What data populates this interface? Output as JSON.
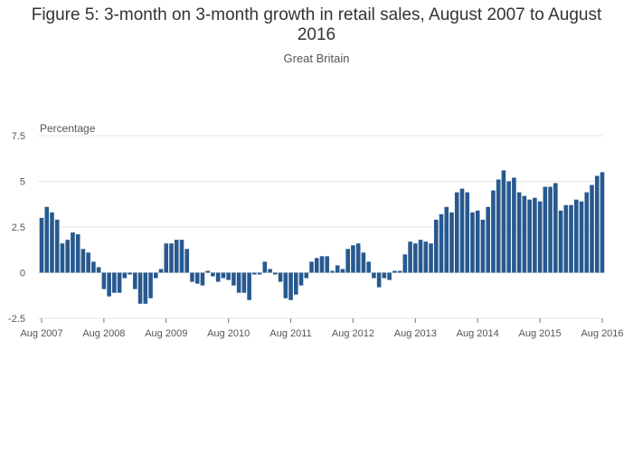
{
  "chart_data": {
    "type": "bar",
    "title": "Figure 5: 3-month on 3-month growth in retail sales, August 2007 to August 2016",
    "subtitle": "Great Britain",
    "xlabel": "",
    "ylabel": "Percentage",
    "ylim": [
      -2.5,
      7.5
    ],
    "yticks": [
      "-2.5",
      "0",
      "2.5",
      "5",
      "7.5"
    ],
    "ytick_values": [
      -2.5,
      0,
      2.5,
      5,
      7.5
    ],
    "xticks": [
      "Aug 2007",
      "Aug 2008",
      "Aug 2009",
      "Aug 2010",
      "Aug 2011",
      "Aug 2012",
      "Aug 2013",
      "Aug 2014",
      "Aug 2015",
      "Aug 2016"
    ],
    "bar_color": "#27598f",
    "grid_color": "#e6e6e6",
    "categories_start": "Aug 2007",
    "categories_end": "Aug 2016",
    "values": [
      3.0,
      3.6,
      3.3,
      2.9,
      1.6,
      1.8,
      2.2,
      2.1,
      1.3,
      1.1,
      0.6,
      0.3,
      -0.9,
      -1.3,
      -1.1,
      -1.1,
      -0.3,
      -0.1,
      -0.9,
      -1.7,
      -1.7,
      -1.4,
      -0.3,
      0.2,
      1.6,
      1.6,
      1.8,
      1.8,
      1.3,
      -0.5,
      -0.6,
      -0.7,
      0.1,
      -0.2,
      -0.5,
      -0.3,
      -0.4,
      -0.7,
      -1.1,
      -1.1,
      -1.5,
      -0.1,
      -0.1,
      0.6,
      0.2,
      -0.1,
      -0.5,
      -1.4,
      -1.5,
      -1.2,
      -0.7,
      -0.3,
      0.6,
      0.8,
      0.9,
      0.9,
      0.1,
      0.4,
      0.2,
      1.3,
      1.5,
      1.6,
      1.1,
      0.6,
      -0.3,
      -0.8,
      -0.3,
      -0.4,
      0.1,
      0.1,
      1.0,
      1.7,
      1.6,
      1.8,
      1.7,
      1.6,
      2.9,
      3.2,
      3.6,
      3.3,
      4.4,
      4.6,
      4.4,
      3.3,
      3.4,
      2.9,
      3.6,
      4.5,
      5.1,
      5.6,
      5.0,
      5.2,
      4.4,
      4.2,
      4.0,
      4.1,
      3.9,
      4.7,
      4.7,
      4.9,
      3.4,
      3.7,
      3.7,
      4.0,
      3.9,
      4.4,
      4.8,
      5.3,
      5.5
    ]
  }
}
